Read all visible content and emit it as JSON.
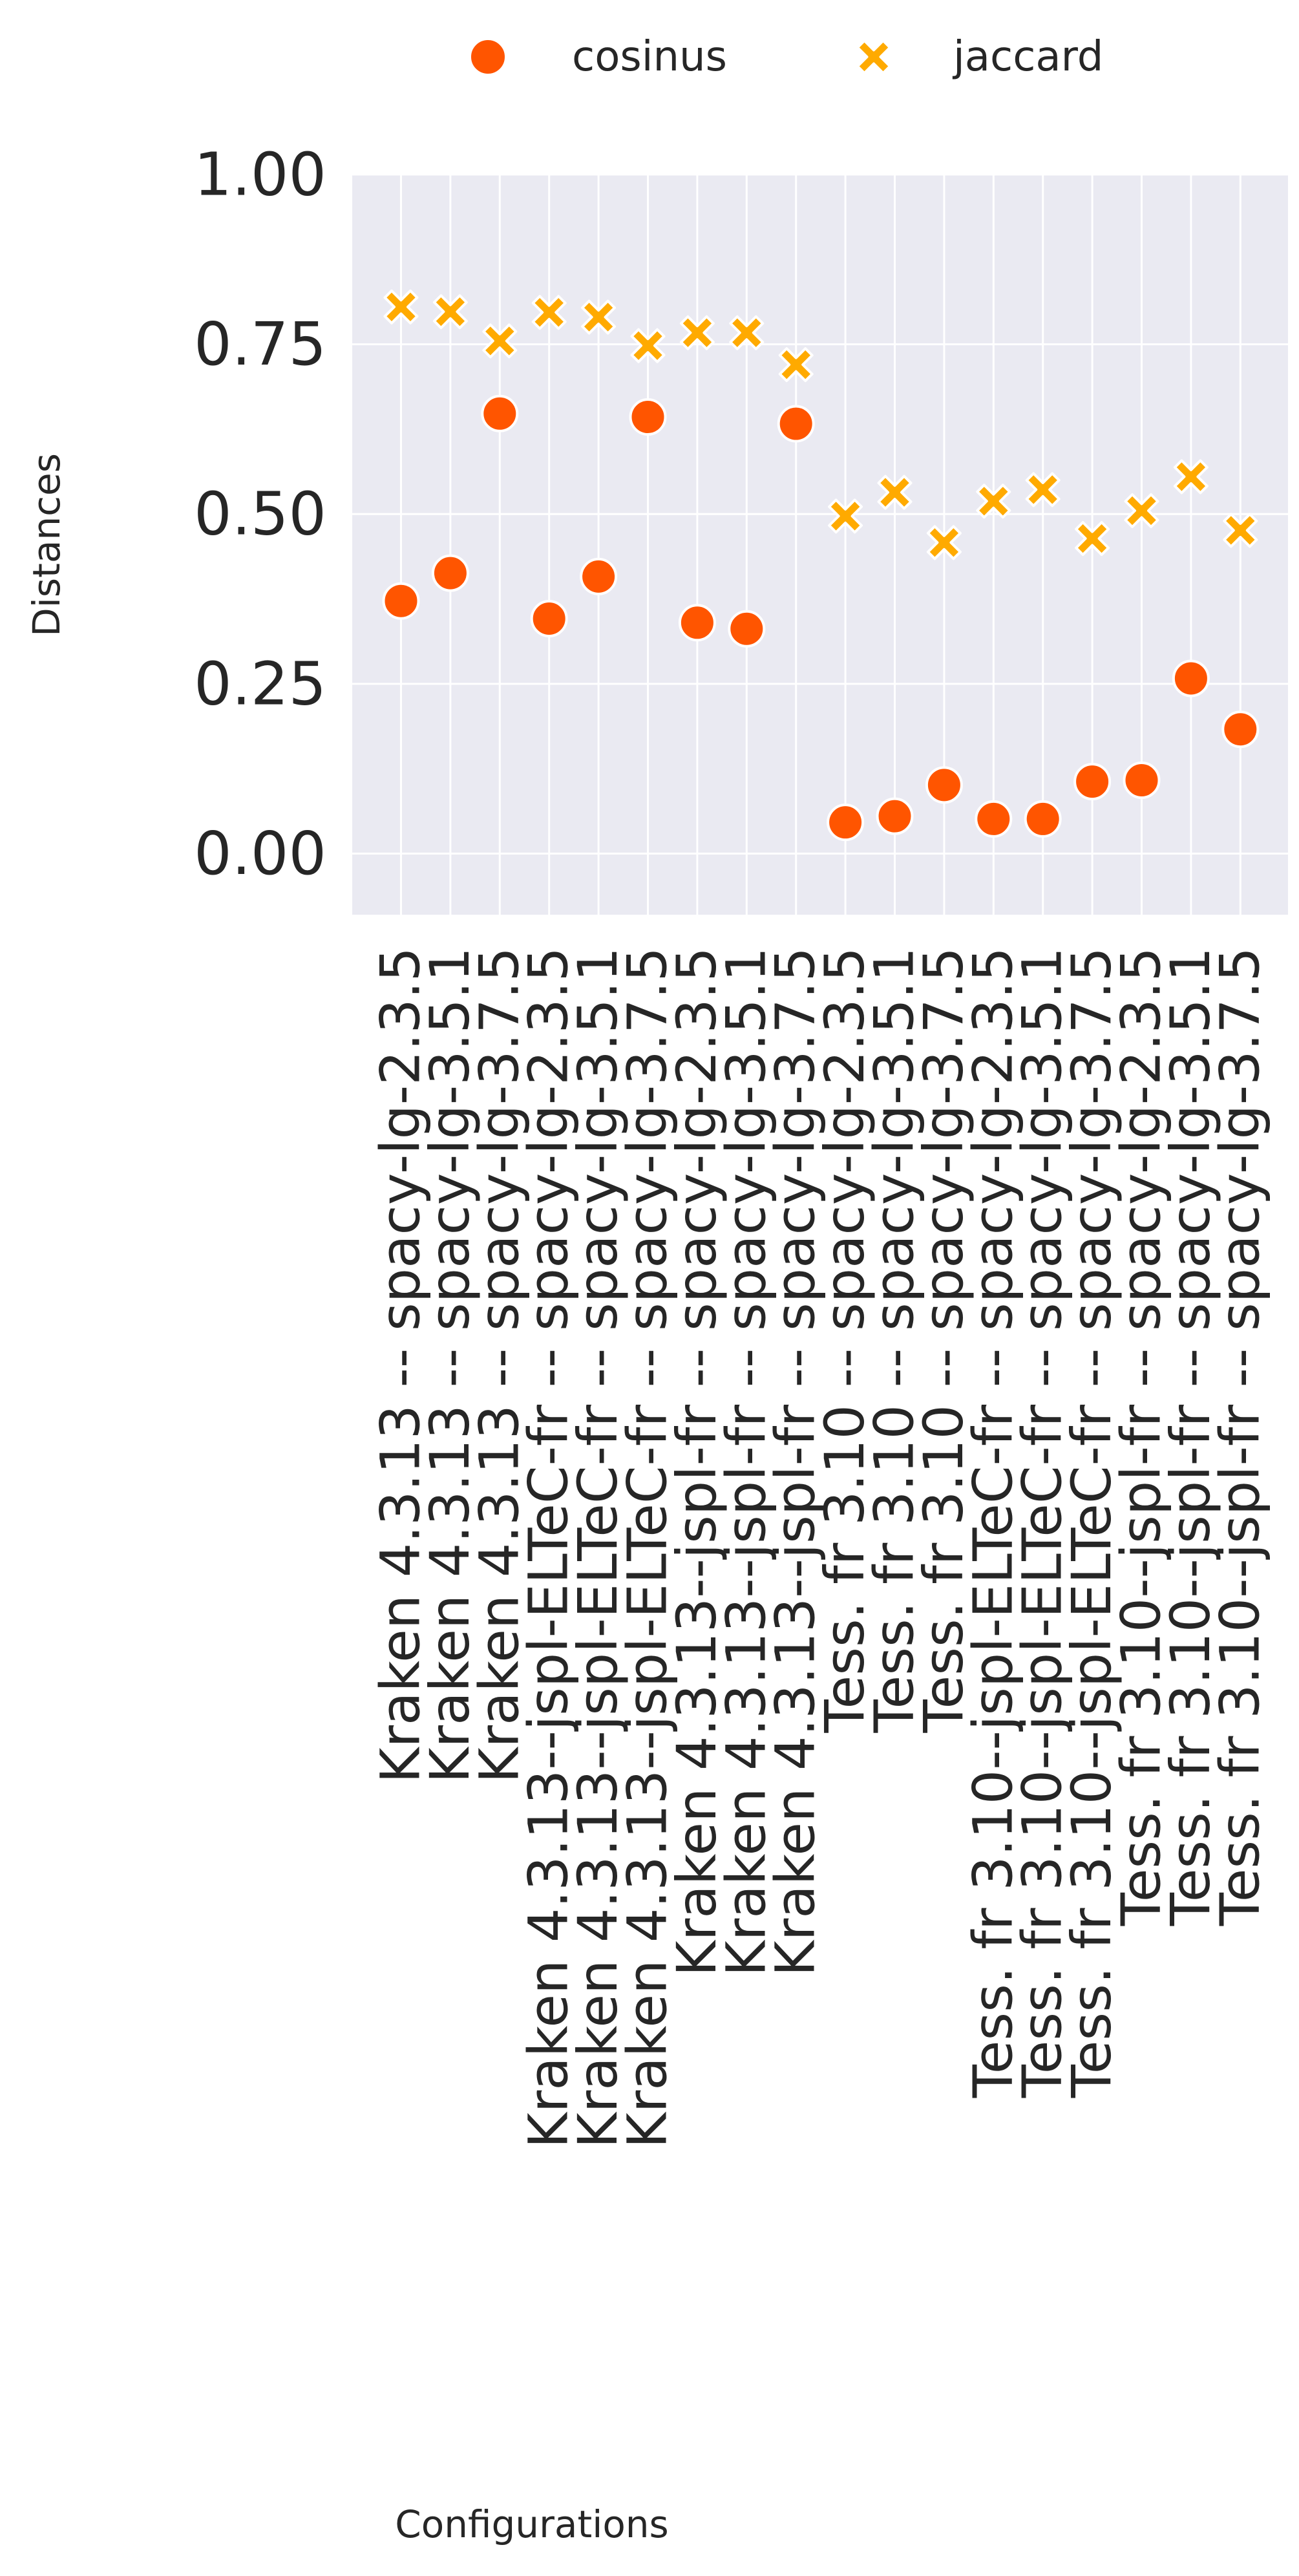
{
  "chart_data": {
    "type": "scatter",
    "title": "",
    "xlabel": "Configurations",
    "ylabel": "Distances",
    "ylim": [
      -0.09,
      1.0
    ],
    "yticks": [
      0.0,
      0.25,
      0.5,
      0.75,
      1.0
    ],
    "ytick_labels": [
      "0.00",
      "0.25",
      "0.50",
      "0.75",
      "1.00"
    ],
    "grid": true,
    "legend": "top-center",
    "categories": [
      "Kraken 4.3.13 -- spacy-lg-2.3.5",
      "Kraken 4.3.13 -- spacy-lg-3.5.1",
      "Kraken 4.3.13 -- spacy-lg-3.7.5",
      "Kraken 4.3.13--jspl-ELTeC-fr -- spacy-lg-2.3.5",
      "Kraken 4.3.13--jspl-ELTeC-fr -- spacy-lg-3.5.1",
      "Kraken 4.3.13--jspl-ELTeC-fr -- spacy-lg-3.7.5",
      "Kraken 4.3.13--jspl-fr -- spacy-lg-2.3.5",
      "Kraken 4.3.13--jspl-fr -- spacy-lg-3.5.1",
      "Kraken 4.3.13--jspl-fr -- spacy-lg-3.7.5",
      "Tess. fr 3.10 -- spacy-lg-2.3.5",
      "Tess. fr 3.10 -- spacy-lg-3.5.1",
      "Tess. fr 3.10 -- spacy-lg-3.7.5",
      "Tess. fr 3.10--jspl-ELTeC-fr -- spacy-lg-2.3.5",
      "Tess. fr 3.10--jspl-ELTeC-fr -- spacy-lg-3.5.1",
      "Tess. fr 3.10--jspl-ELTeC-fr -- spacy-lg-3.7.5",
      "Tess. fr 3.10--jspl-fr -- spacy-lg-2.3.5",
      "Tess. fr 3.10--jspl-fr -- spacy-lg-3.5.1",
      "Tess. fr 3.10--jspl-fr -- spacy-lg-3.7.5"
    ],
    "series": [
      {
        "name": "cosinus",
        "marker": "circle",
        "color": "#FF5500",
        "values": [
          0.372,
          0.413,
          0.648,
          0.346,
          0.408,
          0.643,
          0.34,
          0.331,
          0.633,
          0.046,
          0.055,
          0.101,
          0.051,
          0.051,
          0.106,
          0.108,
          0.258,
          0.183
        ]
      },
      {
        "name": "jaccard",
        "marker": "x",
        "color": "#FFAA00",
        "values": [
          0.805,
          0.798,
          0.755,
          0.797,
          0.79,
          0.748,
          0.767,
          0.767,
          0.72,
          0.497,
          0.532,
          0.458,
          0.519,
          0.536,
          0.464,
          0.505,
          0.555,
          0.476
        ]
      }
    ]
  },
  "colors": {
    "plot_background": "#EAEAF2",
    "grid": "#FFFFFF",
    "text": "#262626"
  }
}
